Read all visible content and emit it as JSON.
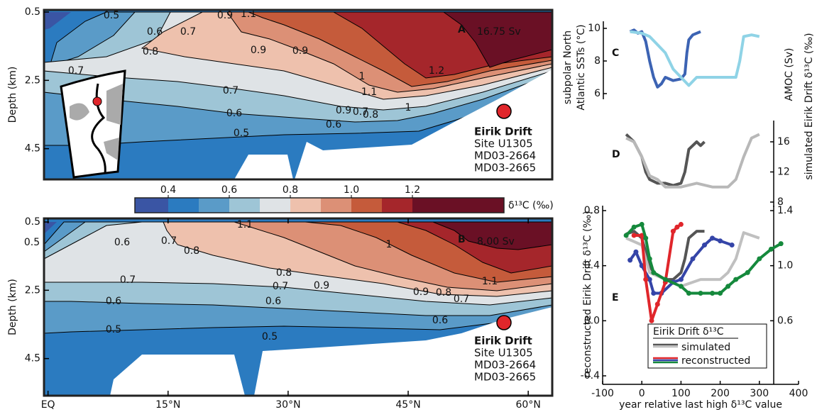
{
  "chart_data": [
    {
      "type": "contour",
      "panel_label": "A",
      "annotation": "16.75 Sv",
      "ylabel": "Depth (km)",
      "ylim": [
        0.5,
        5.4
      ],
      "yticks": [
        0.5,
        2.5,
        4.5
      ],
      "xlim": [
        -0.5,
        63
      ],
      "contour_labels": [
        0.5,
        0.6,
        0.7,
        0.9,
        1.1,
        0.8,
        0.9,
        0.9,
        1,
        1.2,
        0.7,
        0.6,
        0.7,
        0.6,
        0.5,
        0.6,
        0.7,
        0.8,
        0.9,
        1,
        1.1
      ],
      "site_labels": [
        "Eirik Drift",
        "Site U1305",
        "MD03-2664",
        "MD03-2665"
      ]
    },
    {
      "type": "contour",
      "panel_label": "B",
      "annotation": "8.00 Sv",
      "ylabel": "Depth (km)",
      "ylim": [
        0.5,
        5.4
      ],
      "yticks": [
        0.5,
        2.5,
        4.5
      ],
      "xlim": [
        -0.5,
        63
      ],
      "xticks": [
        {
          "value": 0,
          "label": "EQ"
        },
        {
          "value": 15,
          "label": "15°N"
        },
        {
          "value": 30,
          "label": "30°N"
        },
        {
          "value": 45,
          "label": "45°N"
        },
        {
          "value": 60,
          "label": "60°N"
        }
      ],
      "contour_labels": [
        0.5,
        0.6,
        0.7,
        0.8,
        1.1,
        1,
        0.9,
        0.7,
        0.8,
        0.7,
        0.6,
        0.6,
        0.5,
        0.5,
        0.8,
        0.7,
        0.9,
        1.1,
        0.6
      ],
      "site_labels": [
        "Eirik Drift",
        "Site U1305",
        "MD03-2664",
        "MD03-2665"
      ]
    },
    {
      "type": "colorbar",
      "label": "δ¹³C (‰)",
      "levels": [
        0.4,
        0.5,
        0.6,
        0.7,
        0.8,
        0.9,
        1.0,
        1.1,
        1.2
      ],
      "colors": [
        "#3a55a4",
        "#2b7bc0",
        "#5a9bc8",
        "#9ec5d6",
        "#dfe3e6",
        "#eec1ad",
        "#dc9076",
        "#c55b3b",
        "#a5262b",
        "#6a1025"
      ],
      "ticks": [
        0.4,
        0.6,
        0.8,
        {
          "value": 1,
          "label": "1.0"
        },
        1.2
      ]
    },
    {
      "type": "line",
      "panel_label": "C",
      "ylabel": [
        "subpolar North",
        "Atlantic SSTs (°C)"
      ],
      "xlim": [
        -100,
        400
      ],
      "ylim": [
        6,
        10
      ],
      "yticks": [
        6,
        8,
        10
      ],
      "series": [
        {
          "color": "#3c63b3",
          "x": [
            -30,
            -20,
            -10,
            0,
            10,
            20,
            30,
            40,
            50,
            60,
            80,
            100,
            110,
            115,
            120,
            130,
            150
          ],
          "values": [
            9.8,
            9.9,
            9.7,
            9.8,
            9.2,
            8.0,
            7.0,
            6.4,
            6.6,
            7.0,
            6.8,
            6.9,
            7.2,
            8.5,
            9.3,
            9.6,
            9.8
          ]
        },
        {
          "color": "#8fd3e6",
          "x": [
            -30,
            0,
            20,
            40,
            60,
            80,
            100,
            120,
            140,
            160,
            200,
            240,
            250,
            260,
            280,
            300
          ],
          "values": [
            9.8,
            9.7,
            9.5,
            9.0,
            8.5,
            7.5,
            7.0,
            6.5,
            7.0,
            7.0,
            7.0,
            7.0,
            8.0,
            9.5,
            9.6,
            9.5
          ]
        }
      ]
    },
    {
      "type": "line",
      "panel_label": "D",
      "ylabel": "AMOC (Sv)",
      "xlim": [
        -100,
        400
      ],
      "ylim": [
        7,
        18
      ],
      "yticks": [
        8,
        12,
        16
      ],
      "series": [
        {
          "color": "#555555",
          "x": [
            -40,
            -30,
            -20,
            0,
            10,
            20,
            40,
            60,
            80,
            100,
            110,
            120,
            140,
            150,
            160
          ],
          "values": [
            17,
            16.5,
            16,
            14,
            12,
            11,
            10.5,
            10.5,
            10.2,
            10.5,
            12,
            15,
            16,
            15.5,
            16
          ]
        },
        {
          "color": "#b8b8b8",
          "x": [
            -40,
            -20,
            0,
            20,
            40,
            60,
            100,
            140,
            180,
            220,
            240,
            260,
            280,
            300
          ],
          "values": [
            16.5,
            16,
            14,
            11.5,
            11,
            10,
            10,
            10.5,
            10,
            10,
            11,
            14,
            16.5,
            17
          ]
        }
      ]
    },
    {
      "type": "line",
      "panel_label": "E",
      "ylabel": "reconstructed Eirik Drift δ¹³C (‰)",
      "y2label": "simulated Eirik Drift δ¹³C (‰)",
      "xlabel": "year relative last high δ¹³C value",
      "xlim": [
        -100,
        400
      ],
      "xticks": [
        -100,
        0,
        100,
        200,
        300,
        400
      ],
      "ylim": [
        -0.4,
        0.8
      ],
      "yticks": [
        -0.4,
        {
          "value": 0,
          "label": "0.0"
        },
        0.4,
        0.8
      ],
      "y2lim": [
        0.2,
        1.4
      ],
      "y2ticks": [
        0.6,
        {
          "value": 1,
          "label": "1.0"
        },
        1.4
      ],
      "series": [
        {
          "color": "#555555",
          "axis": "y2",
          "x": [
            -40,
            -20,
            0,
            20,
            30,
            60,
            80,
            100,
            110,
            120,
            140,
            160
          ],
          "values": [
            1.23,
            1.25,
            1.2,
            1.0,
            0.95,
            0.9,
            0.9,
            0.95,
            1.05,
            1.2,
            1.25,
            1.25
          ]
        },
        {
          "color": "#c0c0c0",
          "axis": "y2",
          "x": [
            -40,
            0,
            20,
            60,
            100,
            150,
            200,
            220,
            240,
            260,
            300
          ],
          "values": [
            1.2,
            1.15,
            0.95,
            0.9,
            0.85,
            0.9,
            0.9,
            0.95,
            1.05,
            1.24,
            1.2
          ]
        },
        {
          "color": "#3545a8",
          "markers": true,
          "x": [
            -30,
            -15,
            0,
            20,
            30,
            50,
            80,
            100,
            130,
            160,
            180,
            200,
            230
          ],
          "values": [
            0.44,
            0.5,
            0.4,
            0.3,
            0.2,
            0.2,
            0.28,
            0.3,
            0.45,
            0.55,
            0.6,
            0.58,
            0.55
          ]
        },
        {
          "color": "#e0262b",
          "markers": true,
          "x": [
            -20,
            0,
            10,
            25,
            40,
            60,
            80,
            90,
            100
          ],
          "values": [
            0.62,
            0.62,
            0.3,
            0.0,
            0.12,
            0.28,
            0.65,
            0.68,
            0.7
          ]
        },
        {
          "color": "#15893c",
          "markers": true,
          "x": [
            -40,
            -20,
            0,
            10,
            20,
            30,
            60,
            100,
            120,
            150,
            180,
            200,
            220,
            240,
            270,
            300,
            330,
            355
          ],
          "values": [
            0.62,
            0.68,
            0.7,
            0.6,
            0.45,
            0.35,
            0.3,
            0.25,
            0.2,
            0.2,
            0.2,
            0.2,
            0.25,
            0.3,
            0.35,
            0.45,
            0.52,
            0.56
          ]
        }
      ],
      "legend": {
        "title": "Eirik Drift δ¹³C",
        "entries": [
          {
            "name": "simulated",
            "colors": [
              "#555555",
              "#c0c0c0"
            ]
          },
          {
            "name": "reconstructed",
            "colors": [
              "#e0262b",
              "#3545a8",
              "#15893c"
            ]
          }
        ]
      }
    }
  ]
}
